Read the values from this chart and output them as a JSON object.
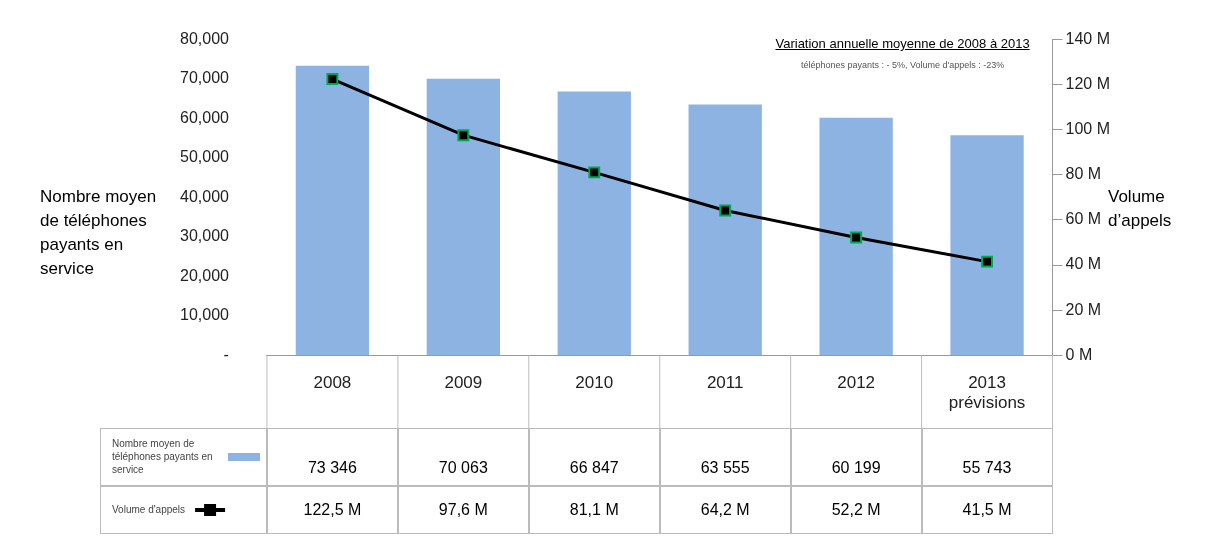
{
  "chart_data": {
    "type": "bar",
    "title": "Variation  annuelle moyenne de 2008 à 2013",
    "subtitle": "téléphones payants : - 5%, Volume d'appels : -23%",
    "ylabel": "Nombre moyen de téléphones payants en service",
    "y2label": "Volume d’appels",
    "categories": [
      "2008",
      "2009",
      "2010",
      "2011",
      "2012",
      "2013 prévisions"
    ],
    "series": [
      {
        "name": "Nombre moyen de téléphones payants en service",
        "color": "#8db3e2",
        "values": [
          73346,
          70063,
          66847,
          63555,
          60199,
          55743
        ],
        "value_labels": [
          "73 346",
          "70 063",
          "66 847",
          "63 555",
          "60 199",
          "55 743"
        ]
      },
      {
        "name": "Volume d'appels",
        "type": "line",
        "axis": "y2",
        "color": "#000000",
        "marker": "square",
        "values": [
          122.5,
          97.6,
          81.1,
          64.2,
          52.2,
          41.5
        ],
        "value_labels": [
          "122,5 M",
          "97,6 M",
          "81,1 M",
          "64,2 M",
          "52,2 M",
          "41,5 M"
        ]
      }
    ],
    "ylim": [
      0,
      80000
    ],
    "yticks": [
      {
        "value": 0,
        "label": "-"
      },
      {
        "value": 10000,
        "label": "10,000"
      },
      {
        "value": 20000,
        "label": "20,000"
      },
      {
        "value": 30000,
        "label": "30,000"
      },
      {
        "value": 40000,
        "label": "40,000"
      },
      {
        "value": 50000,
        "label": "50,000"
      },
      {
        "value": 60000,
        "label": "60,000"
      },
      {
        "value": 70000,
        "label": "70,000"
      },
      {
        "value": 80000,
        "label": "80,000"
      }
    ],
    "y2lim": [
      0,
      140
    ],
    "y2ticks": [
      {
        "value": 0,
        "label": "0 M"
      },
      {
        "value": 20,
        "label": "20 M"
      },
      {
        "value": 40,
        "label": "40 M"
      },
      {
        "value": 60,
        "label": "60 M"
      },
      {
        "value": 80,
        "label": "80 M"
      },
      {
        "value": 100,
        "label": "100 M"
      },
      {
        "value": 120,
        "label": "120 M"
      },
      {
        "value": 140,
        "label": "140 M"
      }
    ],
    "grid": false,
    "legend": "bottom left"
  }
}
